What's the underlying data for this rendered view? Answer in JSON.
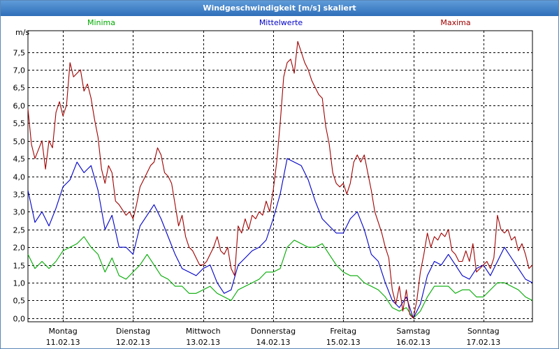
{
  "window": {
    "title": "Windgeschwindigkeit [m/s] skaliert"
  },
  "colors": {
    "minima": "#00aa00",
    "mittel": "#0000c8",
    "maxima": "#a00000",
    "grid": "#000000"
  },
  "chart_data": {
    "type": "line",
    "title": "Windgeschwindigkeit [m/s] skaliert",
    "ylabel": "m/s",
    "ylim": [
      -0.1,
      8.1
    ],
    "yticks": [
      "0,0",
      "0,5",
      "1,0",
      "1,5",
      "2,0",
      "2,5",
      "3,0",
      "3,5",
      "4,0",
      "4,5",
      "5,0",
      "5,5",
      "6,0",
      "6,5",
      "7,0",
      "7,5"
    ],
    "xlim": [
      0,
      7.2
    ],
    "days": [
      {
        "day": "Montag",
        "date": "11.02.13"
      },
      {
        "day": "Dienstag",
        "date": "12.02.13"
      },
      {
        "day": "Mittwoch",
        "date": "13.02.13"
      },
      {
        "day": "Donnerstag",
        "date": "14.02.13"
      },
      {
        "day": "Freitag",
        "date": "15.02.13"
      },
      {
        "day": "Samstag",
        "date": "16.02.13"
      },
      {
        "day": "Sonntag",
        "date": "17.02.13"
      }
    ],
    "grid": true,
    "series": [
      {
        "name": "Minima",
        "key": "minima",
        "points": [
          [
            0,
            1.8
          ],
          [
            0.1,
            1.4
          ],
          [
            0.2,
            1.6
          ],
          [
            0.3,
            1.4
          ],
          [
            0.4,
            1.6
          ],
          [
            0.5,
            1.9
          ],
          [
            0.6,
            2.0
          ],
          [
            0.7,
            2.1
          ],
          [
            0.8,
            2.3
          ],
          [
            0.9,
            2.0
          ],
          [
            1.0,
            1.8
          ],
          [
            1.1,
            1.3
          ],
          [
            1.2,
            1.7
          ],
          [
            1.3,
            1.2
          ],
          [
            1.4,
            1.1
          ],
          [
            1.5,
            1.3
          ],
          [
            1.6,
            1.5
          ],
          [
            1.7,
            1.8
          ],
          [
            1.8,
            1.5
          ],
          [
            1.9,
            1.2
          ],
          [
            2.0,
            1.1
          ],
          [
            2.1,
            0.9
          ],
          [
            2.2,
            0.9
          ],
          [
            2.3,
            0.7
          ],
          [
            2.4,
            0.7
          ],
          [
            2.5,
            0.8
          ],
          [
            2.6,
            0.9
          ],
          [
            2.7,
            0.7
          ],
          [
            2.8,
            0.6
          ],
          [
            2.9,
            0.5
          ],
          [
            3.0,
            0.8
          ],
          [
            3.1,
            0.9
          ],
          [
            3.2,
            1.0
          ],
          [
            3.3,
            1.1
          ],
          [
            3.4,
            1.3
          ],
          [
            3.5,
            1.3
          ],
          [
            3.6,
            1.4
          ],
          [
            3.7,
            2.0
          ],
          [
            3.8,
            2.2
          ],
          [
            3.9,
            2.1
          ],
          [
            4.0,
            2.0
          ],
          [
            4.1,
            2.0
          ],
          [
            4.2,
            2.1
          ],
          [
            4.3,
            1.8
          ],
          [
            4.4,
            1.5
          ],
          [
            4.5,
            1.3
          ],
          [
            4.6,
            1.2
          ],
          [
            4.7,
            1.2
          ],
          [
            4.8,
            1.0
          ],
          [
            4.9,
            0.9
          ],
          [
            5.0,
            0.8
          ],
          [
            5.1,
            0.6
          ],
          [
            5.2,
            0.3
          ],
          [
            5.3,
            0.2
          ],
          [
            5.4,
            0.3
          ],
          [
            5.5,
            0.0
          ],
          [
            5.6,
            0.2
          ],
          [
            5.7,
            0.6
          ],
          [
            5.8,
            0.9
          ],
          [
            5.9,
            0.9
          ],
          [
            6.0,
            0.9
          ],
          [
            6.1,
            0.7
          ],
          [
            6.2,
            0.8
          ],
          [
            6.3,
            0.8
          ],
          [
            6.4,
            0.6
          ],
          [
            6.5,
            0.6
          ],
          [
            6.6,
            0.8
          ],
          [
            6.7,
            1.0
          ],
          [
            6.8,
            1.0
          ],
          [
            6.9,
            0.9
          ],
          [
            7.0,
            0.8
          ],
          [
            7.1,
            0.6
          ],
          [
            7.2,
            0.5
          ]
        ]
      },
      {
        "name": "Mittelwerte",
        "key": "mittel",
        "points": [
          [
            0,
            3.6
          ],
          [
            0.1,
            2.7
          ],
          [
            0.2,
            3.0
          ],
          [
            0.3,
            2.6
          ],
          [
            0.4,
            3.1
          ],
          [
            0.5,
            3.7
          ],
          [
            0.6,
            3.9
          ],
          [
            0.7,
            4.4
          ],
          [
            0.8,
            4.1
          ],
          [
            0.9,
            4.3
          ],
          [
            1.0,
            3.6
          ],
          [
            1.1,
            2.5
          ],
          [
            1.2,
            2.9
          ],
          [
            1.3,
            2.0
          ],
          [
            1.4,
            2.0
          ],
          [
            1.5,
            1.8
          ],
          [
            1.6,
            2.6
          ],
          [
            1.7,
            2.9
          ],
          [
            1.8,
            3.2
          ],
          [
            1.9,
            2.8
          ],
          [
            2.0,
            2.3
          ],
          [
            2.1,
            1.8
          ],
          [
            2.2,
            1.4
          ],
          [
            2.3,
            1.3
          ],
          [
            2.4,
            1.2
          ],
          [
            2.5,
            1.4
          ],
          [
            2.6,
            1.5
          ],
          [
            2.7,
            1.0
          ],
          [
            2.8,
            0.7
          ],
          [
            2.9,
            0.8
          ],
          [
            3.0,
            1.5
          ],
          [
            3.1,
            1.7
          ],
          [
            3.2,
            1.9
          ],
          [
            3.3,
            2.0
          ],
          [
            3.4,
            2.2
          ],
          [
            3.5,
            2.8
          ],
          [
            3.6,
            3.5
          ],
          [
            3.7,
            4.5
          ],
          [
            3.8,
            4.4
          ],
          [
            3.9,
            4.3
          ],
          [
            4.0,
            3.9
          ],
          [
            4.1,
            3.3
          ],
          [
            4.2,
            2.8
          ],
          [
            4.3,
            2.6
          ],
          [
            4.4,
            2.4
          ],
          [
            4.5,
            2.4
          ],
          [
            4.6,
            2.8
          ],
          [
            4.7,
            3.0
          ],
          [
            4.8,
            2.5
          ],
          [
            4.9,
            1.8
          ],
          [
            5.0,
            1.6
          ],
          [
            5.1,
            1.0
          ],
          [
            5.2,
            0.5
          ],
          [
            5.3,
            0.3
          ],
          [
            5.4,
            0.6
          ],
          [
            5.5,
            0.0
          ],
          [
            5.6,
            0.4
          ],
          [
            5.7,
            1.2
          ],
          [
            5.8,
            1.6
          ],
          [
            5.9,
            1.5
          ],
          [
            6.0,
            1.8
          ],
          [
            6.1,
            1.5
          ],
          [
            6.2,
            1.2
          ],
          [
            6.3,
            1.1
          ],
          [
            6.4,
            1.4
          ],
          [
            6.5,
            1.5
          ],
          [
            6.6,
            1.2
          ],
          [
            6.7,
            1.6
          ],
          [
            6.8,
            2.0
          ],
          [
            6.9,
            1.7
          ],
          [
            7.0,
            1.4
          ],
          [
            7.1,
            1.1
          ],
          [
            7.2,
            1.0
          ]
        ]
      },
      {
        "name": "Maxima",
        "key": "maxima",
        "points": [
          [
            0,
            5.9
          ],
          [
            0.05,
            4.9
          ],
          [
            0.1,
            4.5
          ],
          [
            0.2,
            5.0
          ],
          [
            0.25,
            4.2
          ],
          [
            0.3,
            5.0
          ],
          [
            0.35,
            4.8
          ],
          [
            0.4,
            5.8
          ],
          [
            0.45,
            6.1
          ],
          [
            0.5,
            5.7
          ],
          [
            0.55,
            6.0
          ],
          [
            0.6,
            7.2
          ],
          [
            0.65,
            6.8
          ],
          [
            0.7,
            6.9
          ],
          [
            0.75,
            7.0
          ],
          [
            0.8,
            6.4
          ],
          [
            0.85,
            6.6
          ],
          [
            0.9,
            6.2
          ],
          [
            0.95,
            5.6
          ],
          [
            1.0,
            5.1
          ],
          [
            1.05,
            4.2
          ],
          [
            1.1,
            3.8
          ],
          [
            1.15,
            4.3
          ],
          [
            1.2,
            4.1
          ],
          [
            1.25,
            3.3
          ],
          [
            1.3,
            3.2
          ],
          [
            1.4,
            2.9
          ],
          [
            1.45,
            3.0
          ],
          [
            1.5,
            2.8
          ],
          [
            1.55,
            3.2
          ],
          [
            1.6,
            3.7
          ],
          [
            1.65,
            3.9
          ],
          [
            1.7,
            4.1
          ],
          [
            1.75,
            4.3
          ],
          [
            1.8,
            4.4
          ],
          [
            1.85,
            4.8
          ],
          [
            1.9,
            4.6
          ],
          [
            1.95,
            4.1
          ],
          [
            2.0,
            4.0
          ],
          [
            2.05,
            3.8
          ],
          [
            2.1,
            3.2
          ],
          [
            2.15,
            2.6
          ],
          [
            2.2,
            2.9
          ],
          [
            2.25,
            2.3
          ],
          [
            2.3,
            2.0
          ],
          [
            2.35,
            1.9
          ],
          [
            2.4,
            1.7
          ],
          [
            2.45,
            1.5
          ],
          [
            2.5,
            1.5
          ],
          [
            2.55,
            1.6
          ],
          [
            2.6,
            1.8
          ],
          [
            2.65,
            2.0
          ],
          [
            2.7,
            2.3
          ],
          [
            2.75,
            1.9
          ],
          [
            2.8,
            1.8
          ],
          [
            2.85,
            2.0
          ],
          [
            2.9,
            1.4
          ],
          [
            2.95,
            1.2
          ],
          [
            3.0,
            2.6
          ],
          [
            3.05,
            2.4
          ],
          [
            3.1,
            2.8
          ],
          [
            3.15,
            2.5
          ],
          [
            3.2,
            2.9
          ],
          [
            3.25,
            2.8
          ],
          [
            3.3,
            3.0
          ],
          [
            3.35,
            2.9
          ],
          [
            3.4,
            3.3
          ],
          [
            3.45,
            3.0
          ],
          [
            3.5,
            3.6
          ],
          [
            3.55,
            4.4
          ],
          [
            3.6,
            5.5
          ],
          [
            3.65,
            6.8
          ],
          [
            3.7,
            7.2
          ],
          [
            3.75,
            7.3
          ],
          [
            3.8,
            6.9
          ],
          [
            3.85,
            7.8
          ],
          [
            3.9,
            7.5
          ],
          [
            3.95,
            7.2
          ],
          [
            4.0,
            7.0
          ],
          [
            4.05,
            6.7
          ],
          [
            4.1,
            6.5
          ],
          [
            4.15,
            6.3
          ],
          [
            4.2,
            6.2
          ],
          [
            4.25,
            5.4
          ],
          [
            4.3,
            4.9
          ],
          [
            4.35,
            4.1
          ],
          [
            4.4,
            3.8
          ],
          [
            4.45,
            3.7
          ],
          [
            4.5,
            3.8
          ],
          [
            4.55,
            3.5
          ],
          [
            4.6,
            3.8
          ],
          [
            4.65,
            4.4
          ],
          [
            4.7,
            4.6
          ],
          [
            4.75,
            4.4
          ],
          [
            4.8,
            4.6
          ],
          [
            4.85,
            4.1
          ],
          [
            4.9,
            3.6
          ],
          [
            4.95,
            3.0
          ],
          [
            5.0,
            2.7
          ],
          [
            5.05,
            2.4
          ],
          [
            5.1,
            2.0
          ],
          [
            5.15,
            1.7
          ],
          [
            5.2,
            0.8
          ],
          [
            5.25,
            0.4
          ],
          [
            5.3,
            0.9
          ],
          [
            5.35,
            0.2
          ],
          [
            5.4,
            0.8
          ],
          [
            5.45,
            0.1
          ],
          [
            5.5,
            0.0
          ],
          [
            5.55,
            0.5
          ],
          [
            5.6,
            1.3
          ],
          [
            5.65,
            1.8
          ],
          [
            5.7,
            2.4
          ],
          [
            5.75,
            2.0
          ],
          [
            5.8,
            2.3
          ],
          [
            5.85,
            2.2
          ],
          [
            5.9,
            2.4
          ],
          [
            5.95,
            2.3
          ],
          [
            6.0,
            2.5
          ],
          [
            6.05,
            1.9
          ],
          [
            6.1,
            1.8
          ],
          [
            6.15,
            1.6
          ],
          [
            6.2,
            1.6
          ],
          [
            6.25,
            1.9
          ],
          [
            6.3,
            1.6
          ],
          [
            6.35,
            2.1
          ],
          [
            6.4,
            1.3
          ],
          [
            6.45,
            1.4
          ],
          [
            6.5,
            1.5
          ],
          [
            6.55,
            1.6
          ],
          [
            6.6,
            1.4
          ],
          [
            6.65,
            1.7
          ],
          [
            6.7,
            2.9
          ],
          [
            6.75,
            2.5
          ],
          [
            6.8,
            2.4
          ],
          [
            6.85,
            2.5
          ],
          [
            6.9,
            2.2
          ],
          [
            6.95,
            2.3
          ],
          [
            7.0,
            1.9
          ],
          [
            7.05,
            2.1
          ],
          [
            7.1,
            1.8
          ],
          [
            7.15,
            1.4
          ],
          [
            7.2,
            1.5
          ]
        ]
      }
    ]
  }
}
